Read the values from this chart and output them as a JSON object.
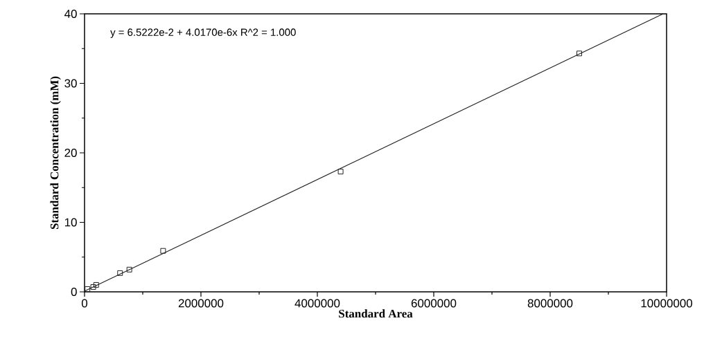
{
  "chart_data": {
    "type": "scatter",
    "xlabel": "Standard Area",
    "ylabel": "Standard  Concentration  (mM)",
    "annotations": [
      "y = 6.5222e-2 + 4.0170e-6x   R^2 = 1.000"
    ],
    "series": [
      {
        "color": "#222222",
        "marker": "square",
        "x": [
          50000,
          150000,
          200000,
          610000,
          770000,
          1350000,
          4400000,
          8500000
        ],
        "values": [
          0.4,
          0.7,
          1.0,
          2.7,
          3.2,
          5.9,
          17.3,
          34.3
        ]
      },
      {
        "type": "line",
        "color": "#222222",
        "marker": "none",
        "line_style": "solid",
        "x": [
          0,
          9940000
        ],
        "values": [
          0.1,
          40
        ]
      }
    ],
    "xlim": [
      0,
      10000000
    ],
    "xticks": [
      0,
      2000000,
      4000000,
      6000000,
      8000000,
      10000000
    ],
    "ylim": [
      0,
      40
    ],
    "yticks": [
      0,
      10,
      20,
      30,
      40
    ],
    "grid": false
  }
}
